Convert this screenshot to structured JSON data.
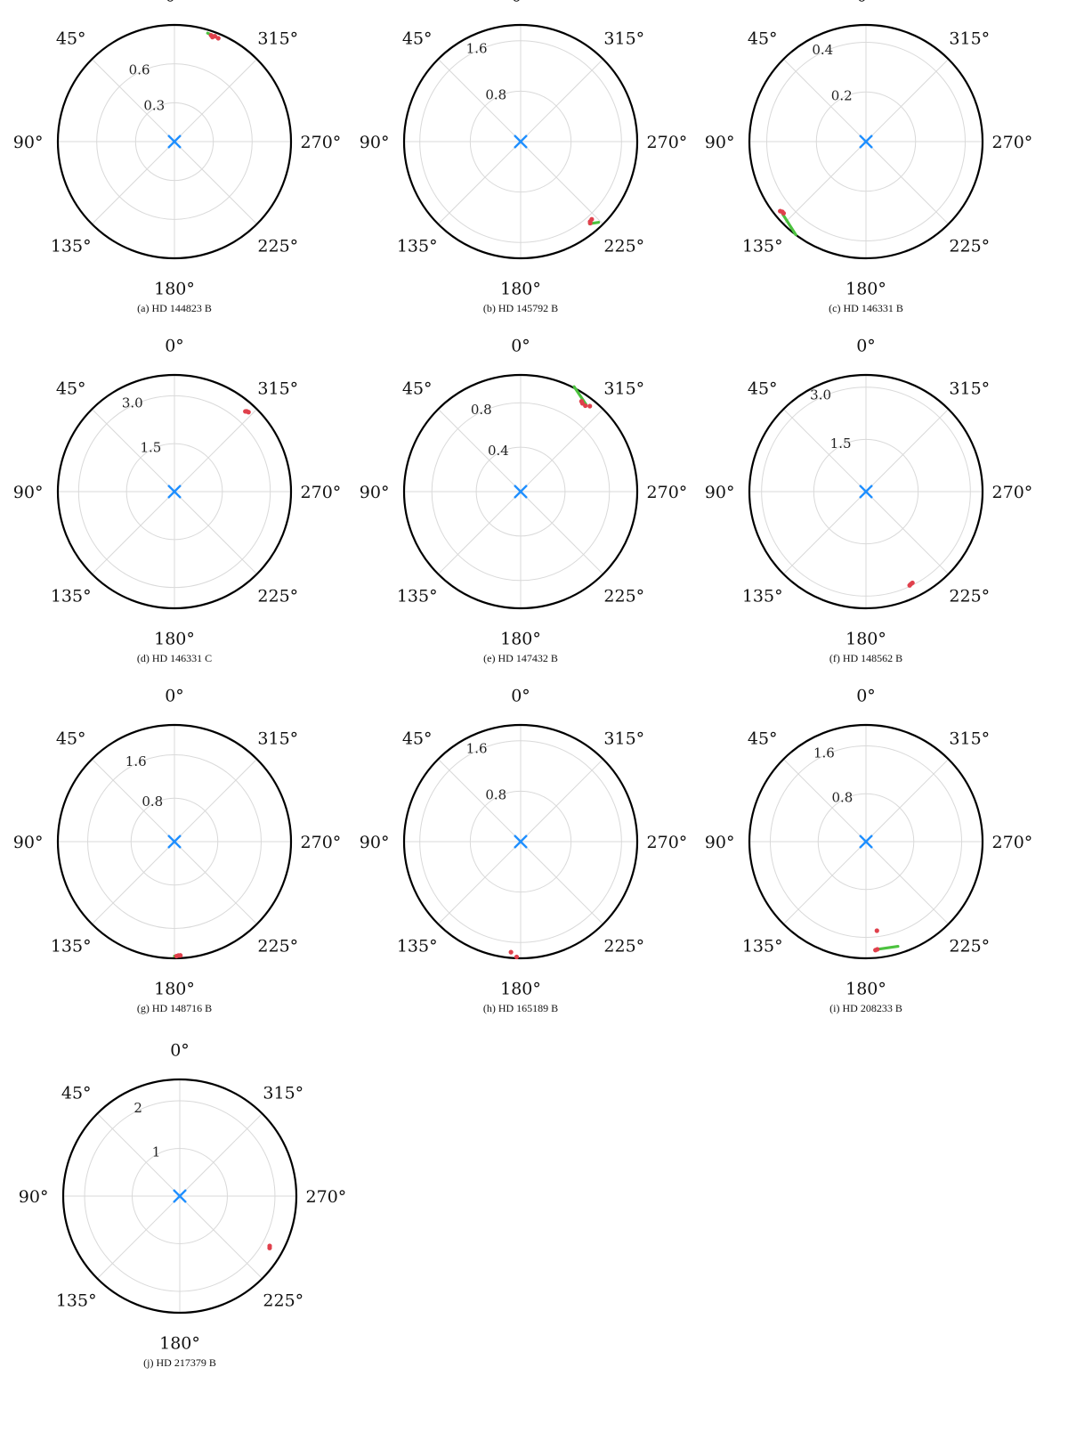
{
  "figure": {
    "angle_labels": [
      "0°",
      "45°",
      "90°",
      "135°",
      "180°",
      "225°",
      "270°",
      "315°"
    ],
    "angle_label_degrees": [
      0,
      45,
      90,
      135,
      180,
      225,
      270,
      315
    ],
    "colors": {
      "boundary": "#000000",
      "grid": "#d9d9d9",
      "star_marker": "#1f8fff",
      "observed": "#e0404c",
      "predicted": "#4cc23f"
    }
  },
  "chart_data": [
    {
      "type": "scatter",
      "caption": "(a) HD 144823 B",
      "projection": "polar, 0° at top, angle increasing counter-clockwise",
      "r_ticks": [
        "0.3",
        "0.6"
      ],
      "r_tick_values": [
        0.3,
        0.6
      ],
      "r_max": 0.9,
      "center_marker": "x",
      "observed_points": [
        [
          341,
          0.868
        ],
        [
          339,
          0.871
        ],
        [
          337,
          0.866
        ],
        [
          340,
          0.858
        ]
      ],
      "predicted_track": [
        [
          343,
          0.875
        ],
        [
          338,
          0.868
        ]
      ]
    },
    {
      "type": "scatter",
      "caption": "(b) HD 145792 B",
      "projection": "polar, 0° at top, angle increasing counter-clockwise",
      "r_ticks": [
        "0.8",
        "1.6"
      ],
      "r_tick_values": [
        0.8,
        1.6
      ],
      "r_max": 1.85,
      "center_marker": "x",
      "observed_points": [
        [
          221,
          1.68
        ],
        [
          222.5,
          1.67
        ],
        [
          220.5,
          1.7
        ]
      ],
      "predicted_track": [
        [
          220,
          1.7
        ],
        [
          224,
          1.78
        ]
      ]
    },
    {
      "type": "scatter",
      "caption": "(c) HD 146331 B",
      "projection": "polar, 0° at top, angle increasing counter-clockwise",
      "r_ticks": [
        "0.2",
        "0.4"
      ],
      "r_tick_values": [
        0.2,
        0.4
      ],
      "r_max": 0.47,
      "center_marker": "x",
      "observed_points": [
        [
          131,
          0.44
        ],
        [
          129,
          0.445
        ],
        [
          130,
          0.44
        ]
      ],
      "predicted_track": [
        [
          131,
          0.445
        ],
        [
          143,
          0.47
        ]
      ]
    },
    {
      "type": "scatter",
      "caption": "(d) HD 146331 C",
      "projection": "polar, 0° at top, angle increasing counter-clockwise",
      "r_ticks": [
        "1.5",
        "3.0"
      ],
      "r_tick_values": [
        1.5,
        3.0
      ],
      "r_max": 3.65,
      "center_marker": "x",
      "observed_points": [
        [
          318,
          3.38
        ],
        [
          317,
          3.4
        ],
        [
          318.5,
          3.35
        ]
      ],
      "predicted_track": []
    },
    {
      "type": "scatter",
      "caption": "(e) HD 147432 B",
      "projection": "polar, 0° at top, angle increasing counter-clockwise",
      "r_ticks": [
        "0.4",
        "0.8"
      ],
      "r_tick_values": [
        0.4,
        0.8
      ],
      "r_max": 1.05,
      "center_marker": "x",
      "observed_points": [
        [
          323,
          0.968
        ],
        [
          325,
          0.97
        ],
        [
          326,
          0.98
        ],
        [
          321,
          0.99
        ]
      ],
      "predicted_track": [
        [
          333,
          1.06
        ],
        [
          323,
          0.98
        ]
      ]
    },
    {
      "type": "scatter",
      "caption": "(f) HD 148562 B",
      "projection": "polar, 0° at top, angle increasing counter-clockwise",
      "r_ticks": [
        "1.5",
        "3.0"
      ],
      "r_tick_values": [
        1.5,
        3.0
      ],
      "r_max": 3.35,
      "center_marker": "x",
      "observed_points": [
        [
          206,
          2.95
        ],
        [
          205,
          2.97
        ],
        [
          207,
          2.94
        ]
      ],
      "predicted_track": []
    },
    {
      "type": "scatter",
      "caption": "(g) HD 148716 B",
      "projection": "polar, 0° at top, angle increasing counter-clockwise",
      "r_ticks": [
        "0.8",
        "1.6"
      ],
      "r_tick_values": [
        0.8,
        1.6
      ],
      "r_max": 2.15,
      "center_marker": "x",
      "observed_points": [
        [
          182,
          2.1
        ],
        [
          181,
          2.11
        ],
        [
          183,
          2.1
        ]
      ],
      "predicted_track": [
        [
          180,
          2.11
        ],
        [
          183,
          2.11
        ]
      ]
    },
    {
      "type": "scatter",
      "caption": "(h) HD 165189 B",
      "projection": "polar, 0° at top, angle increasing counter-clockwise",
      "r_ticks": [
        "0.8",
        "1.6"
      ],
      "r_tick_values": [
        0.8,
        1.6
      ],
      "r_max": 1.85,
      "center_marker": "x",
      "observed_points": [
        [
          178,
          1.83
        ],
        [
          175,
          1.76
        ]
      ],
      "predicted_track": []
    },
    {
      "type": "scatter",
      "caption": "(i) HD 208233 B",
      "projection": "polar, 0° at top, angle increasing counter-clockwise",
      "r_ticks": [
        "0.8",
        "1.6"
      ],
      "r_tick_values": [
        0.8,
        1.6
      ],
      "r_max": 1.95,
      "center_marker": "x",
      "observed_points": [
        [
          187,
          1.5
        ],
        [
          186,
          1.81
        ],
        [
          185,
          1.82
        ]
      ],
      "predicted_track": [
        [
          186,
          1.81
        ],
        [
          197,
          1.83
        ]
      ]
    },
    {
      "type": "scatter",
      "caption": "(j) HD 217379 B",
      "projection": "polar, 0° at top, angle increasing counter-clockwise",
      "r_ticks": [
        "1",
        "2"
      ],
      "r_tick_values": [
        1,
        2
      ],
      "r_max": 2.45,
      "center_marker": "x",
      "observed_points": [
        [
          240,
          2.18
        ],
        [
          241,
          2.16
        ]
      ],
      "predicted_track": []
    }
  ]
}
